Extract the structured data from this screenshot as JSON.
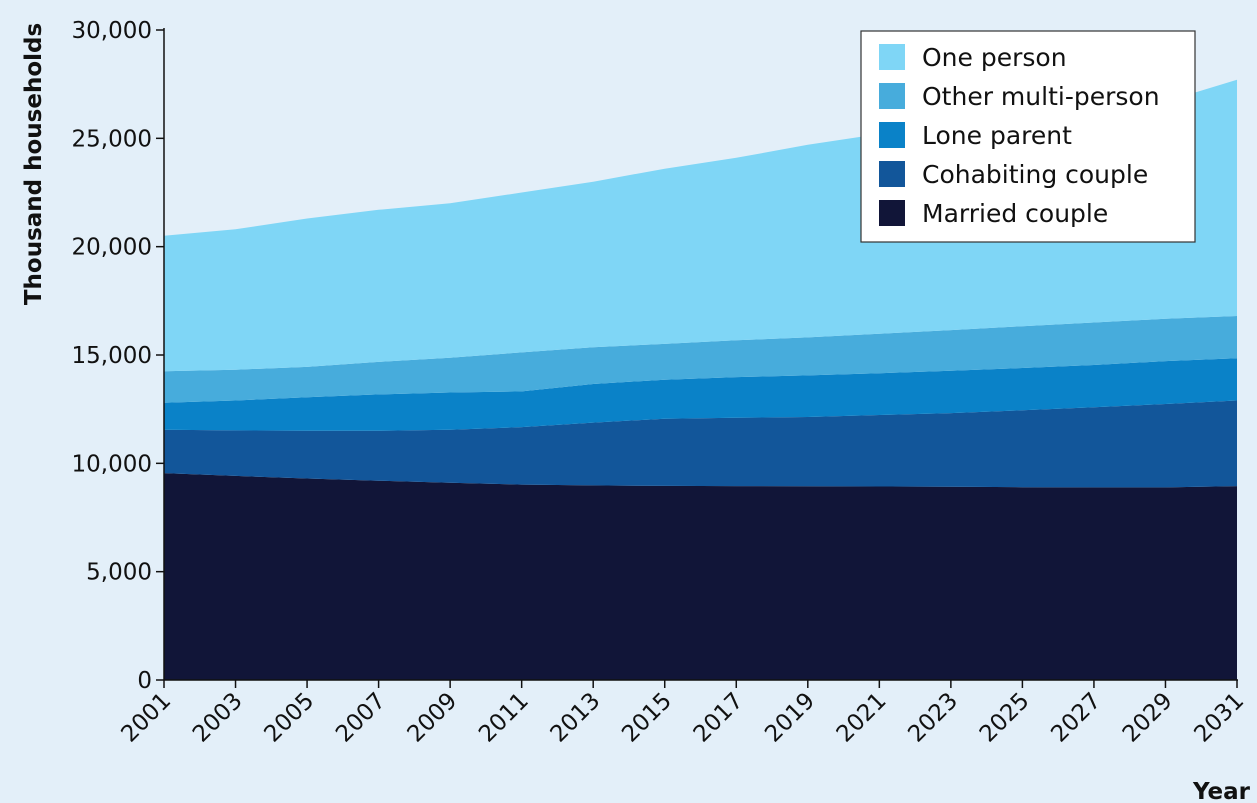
{
  "chart_data": {
    "type": "area",
    "stacked": true,
    "title": "",
    "xlabel": "Year",
    "ylabel": "Thousand households",
    "ylim": [
      0,
      30000
    ],
    "yticks": [
      0,
      5000,
      10000,
      15000,
      20000,
      25000,
      30000
    ],
    "ytick_labels": [
      "0",
      "5,000",
      "10,000",
      "15,000",
      "20,000",
      "25,000",
      "30,000"
    ],
    "x": [
      2001,
      2003,
      2005,
      2007,
      2009,
      2011,
      2013,
      2015,
      2017,
      2019,
      2021,
      2023,
      2025,
      2027,
      2029,
      2031
    ],
    "x_tick_labels": [
      "2001",
      "2003",
      "2005",
      "2007",
      "2009",
      "2011",
      "2013",
      "2015",
      "2017",
      "2019",
      "2021",
      "2023",
      "2025",
      "2027",
      "2029",
      "2031"
    ],
    "grid": false,
    "legend_position": "top-right",
    "series": [
      {
        "name": "Married couple",
        "color": "#111538",
        "values": [
          9550,
          9420,
          9300,
          9200,
          9100,
          9020,
          8980,
          8960,
          8950,
          8940,
          8930,
          8920,
          8900,
          8890,
          8890,
          8950
        ]
      },
      {
        "name": "Cohabiting couple",
        "color": "#12569a",
        "values": [
          2000,
          2100,
          2200,
          2300,
          2450,
          2650,
          2900,
          3100,
          3150,
          3200,
          3300,
          3400,
          3550,
          3700,
          3850,
          3950
        ]
      },
      {
        "name": "Lone parent",
        "color": "#0a82c8",
        "values": [
          1250,
          1380,
          1550,
          1680,
          1720,
          1650,
          1780,
          1800,
          1880,
          1920,
          1930,
          1950,
          1950,
          1950,
          1980,
          1950
        ]
      },
      {
        "name": "Other multi-person",
        "color": "#47acdc",
        "values": [
          1450,
          1420,
          1400,
          1500,
          1600,
          1800,
          1700,
          1650,
          1700,
          1750,
          1820,
          1880,
          1930,
          1960,
          1950,
          1950
        ]
      },
      {
        "name": "One person",
        "color": "#7fd6f6",
        "values": [
          6250,
          6480,
          6850,
          7020,
          7130,
          7380,
          7640,
          8090,
          8420,
          8890,
          9220,
          9250,
          9470,
          9700,
          10030,
          10900
        ]
      }
    ],
    "legend_order": [
      "One person",
      "Other multi-person",
      "Lone parent",
      "Cohabiting couple",
      "Married couple"
    ]
  }
}
